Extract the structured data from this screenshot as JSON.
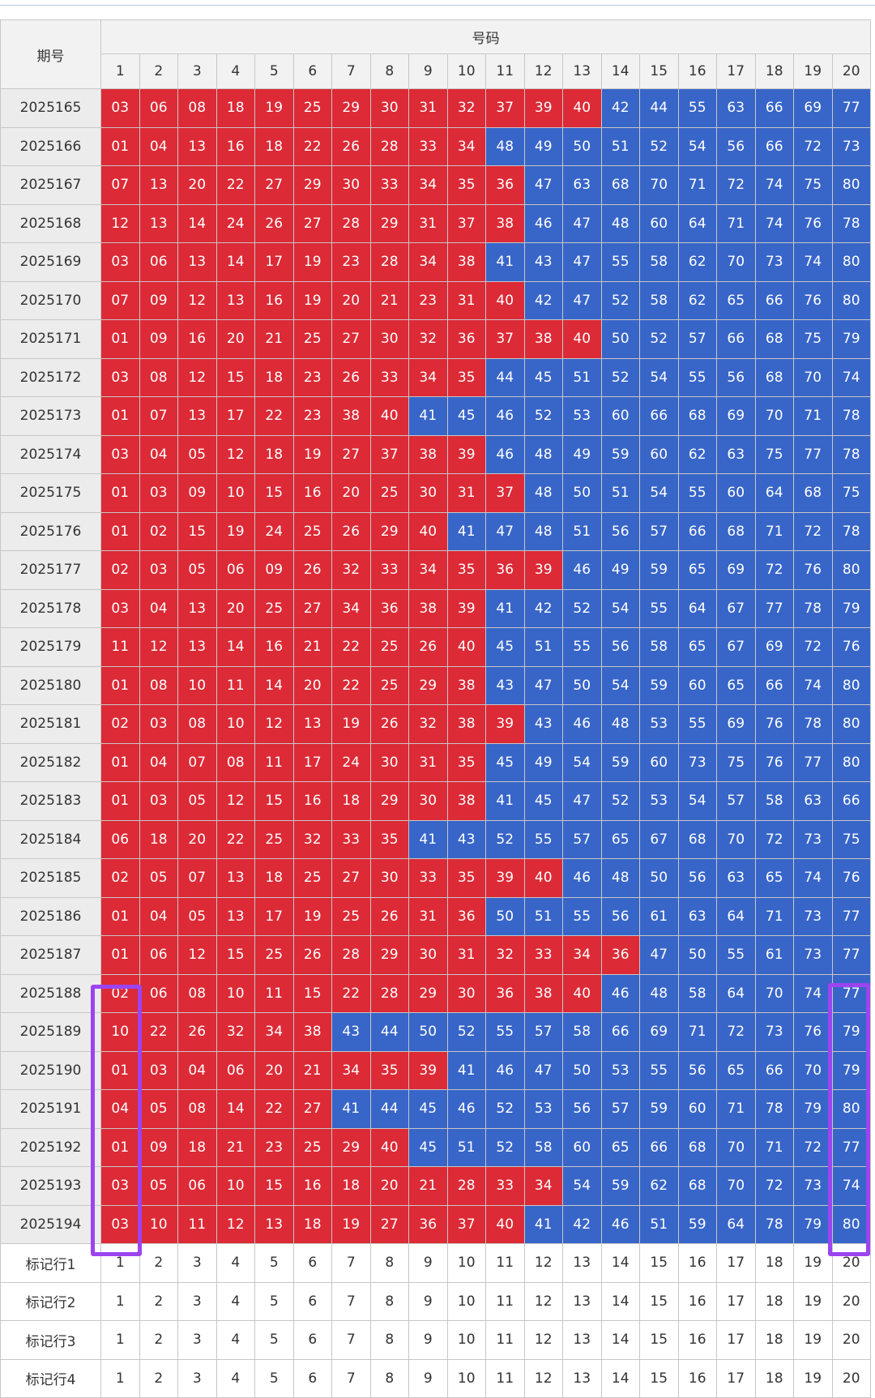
{
  "table": {
    "header_period": "期号",
    "header_numbers": "号码",
    "columns": [
      "1",
      "2",
      "3",
      "4",
      "5",
      "6",
      "7",
      "8",
      "9",
      "10",
      "11",
      "12",
      "13",
      "14",
      "15",
      "16",
      "17",
      "18",
      "19",
      "20"
    ],
    "colors": {
      "red": "#dc2a36",
      "blue": "#3865c8",
      "highlight": "#9b44f0"
    },
    "rows": [
      {
        "period": "2025165",
        "numbers": [
          "03",
          "06",
          "08",
          "18",
          "19",
          "25",
          "29",
          "30",
          "31",
          "32",
          "37",
          "39",
          "40",
          "42",
          "44",
          "55",
          "63",
          "66",
          "69",
          "77"
        ],
        "red_count": 13
      },
      {
        "period": "2025166",
        "numbers": [
          "01",
          "04",
          "13",
          "16",
          "18",
          "22",
          "26",
          "28",
          "33",
          "34",
          "48",
          "49",
          "50",
          "51",
          "52",
          "54",
          "56",
          "66",
          "72",
          "73"
        ],
        "red_count": 10
      },
      {
        "period": "2025167",
        "numbers": [
          "07",
          "13",
          "20",
          "22",
          "27",
          "29",
          "30",
          "33",
          "34",
          "35",
          "36",
          "47",
          "63",
          "68",
          "70",
          "71",
          "72",
          "74",
          "75",
          "80"
        ],
        "red_count": 11
      },
      {
        "period": "2025168",
        "numbers": [
          "12",
          "13",
          "14",
          "24",
          "26",
          "27",
          "28",
          "29",
          "31",
          "37",
          "38",
          "46",
          "47",
          "48",
          "60",
          "64",
          "71",
          "74",
          "76",
          "78"
        ],
        "red_count": 11
      },
      {
        "period": "2025169",
        "numbers": [
          "03",
          "06",
          "13",
          "14",
          "17",
          "19",
          "23",
          "28",
          "34",
          "38",
          "41",
          "43",
          "47",
          "55",
          "58",
          "62",
          "70",
          "73",
          "74",
          "80"
        ],
        "red_count": 10
      },
      {
        "period": "2025170",
        "numbers": [
          "07",
          "09",
          "12",
          "13",
          "16",
          "19",
          "20",
          "21",
          "23",
          "31",
          "40",
          "42",
          "47",
          "52",
          "58",
          "62",
          "65",
          "66",
          "76",
          "80"
        ],
        "red_count": 11
      },
      {
        "period": "2025171",
        "numbers": [
          "01",
          "09",
          "16",
          "20",
          "21",
          "25",
          "27",
          "30",
          "32",
          "36",
          "37",
          "38",
          "40",
          "50",
          "52",
          "57",
          "66",
          "68",
          "75",
          "79"
        ],
        "red_count": 13
      },
      {
        "period": "2025172",
        "numbers": [
          "03",
          "08",
          "12",
          "15",
          "18",
          "23",
          "26",
          "33",
          "34",
          "35",
          "44",
          "45",
          "51",
          "52",
          "54",
          "55",
          "56",
          "68",
          "70",
          "74"
        ],
        "red_count": 10
      },
      {
        "period": "2025173",
        "numbers": [
          "01",
          "07",
          "13",
          "17",
          "22",
          "23",
          "38",
          "40",
          "41",
          "45",
          "46",
          "52",
          "53",
          "60",
          "66",
          "68",
          "69",
          "70",
          "71",
          "78"
        ],
        "red_count": 8
      },
      {
        "period": "2025174",
        "numbers": [
          "03",
          "04",
          "05",
          "12",
          "18",
          "19",
          "27",
          "37",
          "38",
          "39",
          "46",
          "48",
          "49",
          "59",
          "60",
          "62",
          "63",
          "75",
          "77",
          "78"
        ],
        "red_count": 10
      },
      {
        "period": "2025175",
        "numbers": [
          "01",
          "03",
          "09",
          "10",
          "15",
          "16",
          "20",
          "25",
          "30",
          "31",
          "37",
          "48",
          "50",
          "51",
          "54",
          "55",
          "60",
          "64",
          "68",
          "75"
        ],
        "red_count": 11
      },
      {
        "period": "2025176",
        "numbers": [
          "01",
          "02",
          "15",
          "19",
          "24",
          "25",
          "26",
          "29",
          "40",
          "41",
          "47",
          "48",
          "51",
          "56",
          "57",
          "66",
          "68",
          "71",
          "72",
          "78"
        ],
        "red_count": 9
      },
      {
        "period": "2025177",
        "numbers": [
          "02",
          "03",
          "05",
          "06",
          "09",
          "26",
          "32",
          "33",
          "34",
          "35",
          "36",
          "39",
          "46",
          "49",
          "59",
          "65",
          "69",
          "72",
          "76",
          "80"
        ],
        "red_count": 12
      },
      {
        "period": "2025178",
        "numbers": [
          "03",
          "04",
          "13",
          "20",
          "25",
          "27",
          "34",
          "36",
          "38",
          "39",
          "41",
          "42",
          "52",
          "54",
          "55",
          "64",
          "67",
          "77",
          "78",
          "79"
        ],
        "red_count": 10
      },
      {
        "period": "2025179",
        "numbers": [
          "11",
          "12",
          "13",
          "14",
          "16",
          "21",
          "22",
          "25",
          "26",
          "40",
          "45",
          "51",
          "55",
          "56",
          "58",
          "65",
          "67",
          "69",
          "72",
          "76"
        ],
        "red_count": 10
      },
      {
        "period": "2025180",
        "numbers": [
          "01",
          "08",
          "10",
          "11",
          "14",
          "20",
          "22",
          "25",
          "29",
          "38",
          "43",
          "47",
          "50",
          "54",
          "59",
          "60",
          "65",
          "66",
          "74",
          "80"
        ],
        "red_count": 10
      },
      {
        "period": "2025181",
        "numbers": [
          "02",
          "03",
          "08",
          "10",
          "12",
          "13",
          "19",
          "26",
          "32",
          "38",
          "39",
          "43",
          "46",
          "48",
          "53",
          "55",
          "69",
          "76",
          "78",
          "80"
        ],
        "red_count": 11
      },
      {
        "period": "2025182",
        "numbers": [
          "01",
          "04",
          "07",
          "08",
          "11",
          "17",
          "24",
          "30",
          "31",
          "35",
          "45",
          "49",
          "54",
          "59",
          "60",
          "73",
          "75",
          "76",
          "77",
          "80"
        ],
        "red_count": 10
      },
      {
        "period": "2025183",
        "numbers": [
          "01",
          "03",
          "05",
          "12",
          "15",
          "16",
          "18",
          "29",
          "30",
          "38",
          "41",
          "45",
          "47",
          "52",
          "53",
          "54",
          "57",
          "58",
          "63",
          "66"
        ],
        "red_count": 10
      },
      {
        "period": "2025184",
        "numbers": [
          "06",
          "18",
          "20",
          "22",
          "25",
          "32",
          "33",
          "35",
          "41",
          "43",
          "52",
          "55",
          "57",
          "65",
          "67",
          "68",
          "70",
          "72",
          "73",
          "75"
        ],
        "red_count": 8
      },
      {
        "period": "2025185",
        "numbers": [
          "02",
          "05",
          "07",
          "13",
          "18",
          "25",
          "27",
          "30",
          "33",
          "35",
          "39",
          "40",
          "46",
          "48",
          "50",
          "56",
          "63",
          "65",
          "74",
          "76"
        ],
        "red_count": 12
      },
      {
        "period": "2025186",
        "numbers": [
          "01",
          "04",
          "05",
          "13",
          "17",
          "19",
          "25",
          "26",
          "31",
          "36",
          "50",
          "51",
          "55",
          "56",
          "61",
          "63",
          "64",
          "71",
          "73",
          "77"
        ],
        "red_count": 10
      },
      {
        "period": "2025187",
        "numbers": [
          "01",
          "06",
          "12",
          "15",
          "25",
          "26",
          "28",
          "29",
          "30",
          "31",
          "32",
          "33",
          "34",
          "36",
          "47",
          "50",
          "55",
          "61",
          "73",
          "77"
        ],
        "red_count": 14
      },
      {
        "period": "2025188",
        "numbers": [
          "02",
          "06",
          "08",
          "10",
          "11",
          "15",
          "22",
          "28",
          "29",
          "30",
          "36",
          "38",
          "40",
          "46",
          "48",
          "58",
          "64",
          "70",
          "74",
          "77"
        ],
        "red_count": 13
      },
      {
        "period": "2025189",
        "numbers": [
          "10",
          "22",
          "26",
          "32",
          "34",
          "38",
          "43",
          "44",
          "50",
          "52",
          "55",
          "57",
          "58",
          "66",
          "69",
          "71",
          "72",
          "73",
          "76",
          "79"
        ],
        "red_count": 6
      },
      {
        "period": "2025190",
        "numbers": [
          "01",
          "03",
          "04",
          "06",
          "20",
          "21",
          "34",
          "35",
          "39",
          "41",
          "46",
          "47",
          "50",
          "53",
          "55",
          "56",
          "65",
          "66",
          "70",
          "79"
        ],
        "red_count": 9
      },
      {
        "period": "2025191",
        "numbers": [
          "04",
          "05",
          "08",
          "14",
          "22",
          "27",
          "41",
          "44",
          "45",
          "46",
          "52",
          "53",
          "56",
          "57",
          "59",
          "60",
          "71",
          "78",
          "79",
          "80"
        ],
        "red_count": 6
      },
      {
        "period": "2025192",
        "numbers": [
          "01",
          "09",
          "18",
          "21",
          "23",
          "25",
          "29",
          "40",
          "45",
          "51",
          "52",
          "58",
          "60",
          "65",
          "66",
          "68",
          "70",
          "71",
          "72",
          "77"
        ],
        "red_count": 8
      },
      {
        "period": "2025193",
        "numbers": [
          "03",
          "05",
          "06",
          "10",
          "15",
          "16",
          "18",
          "20",
          "21",
          "28",
          "33",
          "34",
          "54",
          "59",
          "62",
          "68",
          "70",
          "72",
          "73",
          "74"
        ],
        "red_count": 12
      },
      {
        "period": "2025194",
        "numbers": [
          "03",
          "10",
          "11",
          "12",
          "13",
          "18",
          "19",
          "27",
          "36",
          "37",
          "40",
          "41",
          "42",
          "46",
          "51",
          "59",
          "64",
          "78",
          "79",
          "80"
        ],
        "red_count": 11
      }
    ],
    "marker_rows": [
      {
        "label": "标记行1",
        "values": [
          "1",
          "2",
          "3",
          "4",
          "5",
          "6",
          "7",
          "8",
          "9",
          "10",
          "11",
          "12",
          "13",
          "14",
          "15",
          "16",
          "17",
          "18",
          "19",
          "20"
        ]
      },
      {
        "label": "标记行2",
        "values": [
          "1",
          "2",
          "3",
          "4",
          "5",
          "6",
          "7",
          "8",
          "9",
          "10",
          "11",
          "12",
          "13",
          "14",
          "15",
          "16",
          "17",
          "18",
          "19",
          "20"
        ]
      },
      {
        "label": "标记行3",
        "values": [
          "1",
          "2",
          "3",
          "4",
          "5",
          "6",
          "7",
          "8",
          "9",
          "10",
          "11",
          "12",
          "13",
          "14",
          "15",
          "16",
          "17",
          "18",
          "19",
          "20"
        ]
      },
      {
        "label": "标记行4",
        "values": [
          "1",
          "2",
          "3",
          "4",
          "5",
          "6",
          "7",
          "8",
          "9",
          "10",
          "11",
          "12",
          "13",
          "14",
          "15",
          "16",
          "17",
          "18",
          "19",
          "20"
        ]
      }
    ]
  }
}
